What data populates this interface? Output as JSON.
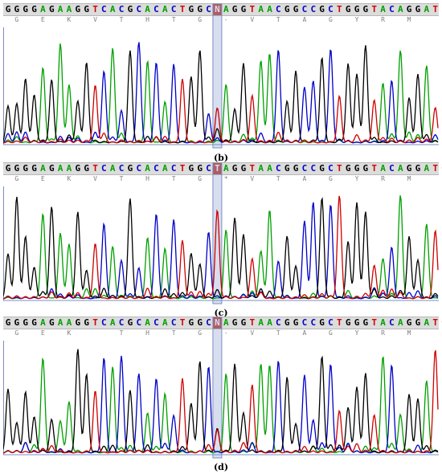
{
  "colors": {
    "A": "#00a000",
    "C": "#0000c8",
    "G": "#000000",
    "T": "#d00000",
    "N": "#d00000"
  },
  "panels": [
    {
      "id": "b",
      "caption": "(b)",
      "sequence": [
        "G",
        "G",
        "G",
        "G",
        "A",
        "G",
        "A",
        "A",
        "G",
        "G",
        "T",
        "C",
        "A",
        "C",
        "G",
        "C",
        "A",
        "C",
        "A",
        "C",
        "T",
        "G",
        "G",
        "C",
        "N",
        "A",
        "G",
        "G",
        "T",
        "A",
        "A",
        "C",
        "G",
        "G",
        "C",
        "C",
        "G",
        "C",
        "T",
        "G",
        "G",
        "G",
        "T",
        "A",
        "C",
        "A",
        "G",
        "G",
        "A",
        "T"
      ],
      "amino_acids": [
        "G",
        "E",
        "K",
        "V",
        "T",
        "H",
        "T",
        "G",
        "-",
        "V",
        "T",
        "A",
        "G",
        "Y",
        "R",
        "M"
      ]
    },
    {
      "id": "c",
      "caption": "(c)",
      "sequence": [
        "G",
        "G",
        "G",
        "G",
        "A",
        "G",
        "A",
        "A",
        "G",
        "G",
        "T",
        "C",
        "A",
        "C",
        "G",
        "C",
        "A",
        "C",
        "A",
        "C",
        "T",
        "G",
        "G",
        "C",
        "T",
        "A",
        "G",
        "G",
        "T",
        "A",
        "A",
        "C",
        "G",
        "G",
        "C",
        "C",
        "G",
        "C",
        "T",
        "G",
        "G",
        "G",
        "T",
        "A",
        "C",
        "A",
        "G",
        "G",
        "A",
        "T",
        "G"
      ],
      "amino_acids": [
        "G",
        "E",
        "K",
        "V",
        "T",
        "H",
        "T",
        "G",
        "*",
        "V",
        "T",
        "A",
        "G",
        "Y",
        "R",
        "M"
      ]
    },
    {
      "id": "d",
      "caption": "(d)",
      "sequence": [
        "G",
        "G",
        "G",
        "G",
        "A",
        "G",
        "A",
        "A",
        "G",
        "G",
        "T",
        "C",
        "A",
        "C",
        "G",
        "C",
        "A",
        "C",
        "A",
        "C",
        "T",
        "G",
        "G",
        "C",
        "N",
        "A",
        "G",
        "G",
        "T",
        "A",
        "A",
        "C",
        "G",
        "G",
        "C",
        "C",
        "G",
        "C",
        "T",
        "G",
        "G",
        "G",
        "T",
        "A",
        "C",
        "A",
        "G",
        "G",
        "A",
        "T",
        "G"
      ],
      "amino_acids": [
        "G",
        "E",
        "K",
        "",
        "T",
        "H",
        "T",
        "G",
        "-",
        "V",
        "T",
        "A",
        "G",
        "Y",
        "R",
        "M"
      ]
    }
  ]
}
